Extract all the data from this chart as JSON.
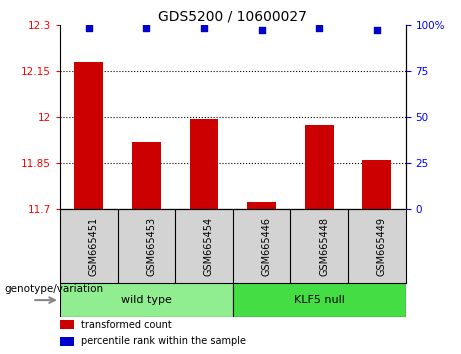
{
  "title": "GDS5200 / 10600027",
  "samples": [
    "GSM665451",
    "GSM665453",
    "GSM665454",
    "GSM665446",
    "GSM665448",
    "GSM665449"
  ],
  "bar_values": [
    12.18,
    11.92,
    11.995,
    11.725,
    11.975,
    11.86
  ],
  "percentile_values": [
    98,
    98,
    98,
    97,
    98,
    97
  ],
  "ymin": 11.7,
  "ymax": 12.3,
  "yticks": [
    11.7,
    11.85,
    12.0,
    12.15,
    12.3
  ],
  "ytick_labels": [
    "11.7",
    "11.85",
    "12",
    "12.15",
    "12.3"
  ],
  "right_yticks": [
    0,
    25,
    50,
    75,
    100
  ],
  "right_ytick_labels": [
    "0",
    "25",
    "50",
    "75",
    "100%"
  ],
  "bar_color": "#cc0000",
  "dot_color": "#0000cc",
  "groups": [
    {
      "label": "wild type",
      "start": 0,
      "end": 3,
      "color": "#90ee90"
    },
    {
      "label": "KLF5 null",
      "start": 3,
      "end": 6,
      "color": "#44dd44"
    }
  ],
  "legend_items": [
    {
      "label": "transformed count",
      "color": "#cc0000"
    },
    {
      "label": "percentile rank within the sample",
      "color": "#0000cc"
    }
  ],
  "genotype_label": "genotype/variation",
  "sample_box_color": "#d3d3d3",
  "background_color": "#ffffff"
}
